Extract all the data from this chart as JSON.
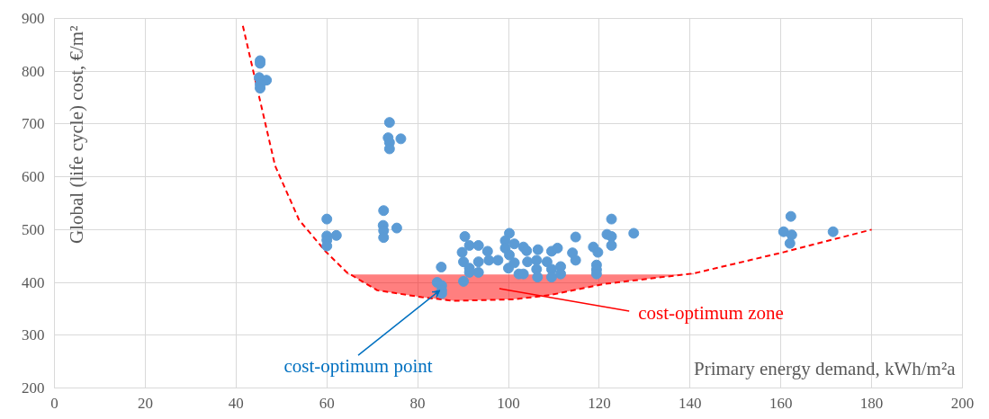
{
  "chart_data": {
    "type": "scatter",
    "xlabel": "Primary energy demand, kWh/m²a",
    "ylabel": "Global (life cycle) cost, €/m²",
    "xlim": [
      0,
      200
    ],
    "xticks": [
      0,
      20,
      40,
      60,
      80,
      100,
      120,
      140,
      160,
      180,
      200
    ],
    "ylim": [
      200,
      900
    ],
    "yticks": [
      200,
      300,
      400,
      500,
      600,
      700,
      800,
      900
    ],
    "grid": true,
    "series": [
      {
        "marker": "circle",
        "color": "#5b9bd5",
        "x": [
          45.3,
          45.3,
          45.1,
          46.7,
          45.3,
          45.3,
          73.8,
          73.5,
          76.3,
          73.8,
          73.8,
          60,
          60,
          62.1,
          60,
          60,
          72.5,
          72.4,
          75.4,
          72.5,
          72.5,
          85.2,
          84.3,
          85.3,
          85.3,
          85.3,
          90.1,
          90.4,
          91.4,
          93.4,
          89.8,
          90.1,
          91.4,
          93.4,
          93.4,
          91.4,
          95.4,
          95.7,
          97.7,
          100.2,
          99.3,
          101.3,
          99.3,
          100.2,
          100,
          101.3,
          102.3,
          103.3,
          103.3,
          104,
          106.5,
          104.2,
          106.2,
          106.2,
          106.4,
          108.5,
          109.5,
          110.8,
          109.5,
          109.5,
          111.5,
          111.5,
          114.8,
          114.1,
          114.8,
          118.7,
          119.7,
          119.4,
          119.4,
          119.4,
          121.7,
          122.7,
          122.7,
          122.7,
          127.6,
          162.2,
          160.6,
          162.4,
          162,
          171.5
        ],
        "values": [
          820,
          815,
          788,
          783,
          775,
          768,
          703,
          674,
          672,
          665,
          653,
          520,
          488,
          489,
          480,
          469,
          536,
          508,
          503,
          498,
          485,
          429,
          400,
          394,
          385,
          379,
          402,
          487,
          470,
          470,
          457,
          439,
          427,
          439,
          419,
          419,
          459,
          442,
          442,
          493,
          479,
          473,
          465,
          452,
          427,
          437,
          416,
          416,
          467,
          460,
          462,
          439,
          442,
          425,
          410,
          439,
          459,
          465,
          425,
          410,
          430,
          416,
          486,
          456,
          442,
          467,
          457,
          433,
          424,
          416,
          491,
          520,
          487,
          470,
          493,
          525,
          496,
          490,
          474,
          496
        ]
      },
      {
        "type": "line",
        "color": "#ff0000",
        "line_style": "dashed",
        "x": [
          41.5,
          44.6,
          48.6,
          53.9,
          59.8,
          64.4,
          71.1,
          80.9,
          88,
          101.3,
          109.2,
          121,
          140.8,
          160.5,
          180
        ],
        "values": [
          886,
          770,
          621,
          518,
          458,
          419,
          385,
          372,
          365,
          368,
          376,
          397,
          417,
          457,
          500
        ],
        "lower": [
          null,
          null,
          null,
          null,
          null,
          419,
          385,
          372,
          365,
          368,
          376,
          397,
          417,
          null,
          null
        ],
        "upper": [
          null,
          null,
          null,
          null,
          null,
          415,
          415,
          415,
          415,
          415,
          415,
          415,
          415,
          null,
          null
        ]
      }
    ],
    "annotations": [
      {
        "text": "cost-optimum point",
        "x": 84.9,
        "y": 385
      },
      "cost-optimum zone"
    ]
  }
}
